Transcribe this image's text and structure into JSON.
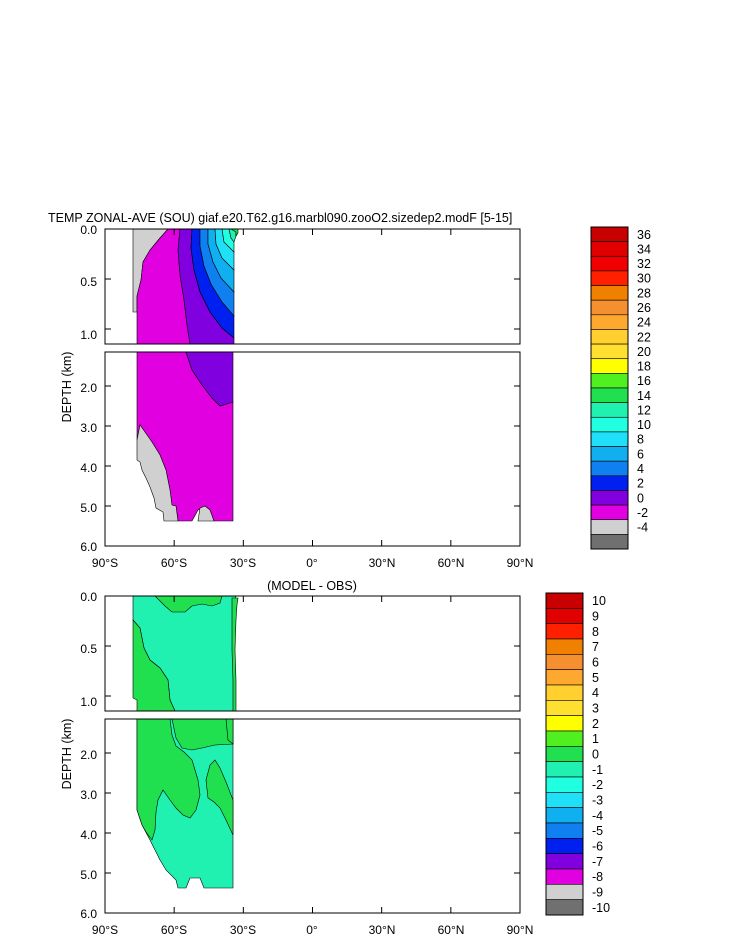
{
  "chart_data": [
    {
      "type": "contour",
      "title": "TEMP ZONAL-AVE (SOU) giaf.e20.T62.g16.marbl090.zooO2.sizedep2.modF [5-15]",
      "ylabel": "DEPTH (km)",
      "xlim": [
        -90,
        90
      ],
      "upper_ylim": [
        0.0,
        1.15
      ],
      "lower_ylim": [
        1.15,
        6.0
      ],
      "upper_yticks": [
        "0.0",
        "0.5",
        "1.0"
      ],
      "lower_yticks": [
        "2.0",
        "3.0",
        "4.0",
        "5.0",
        "6.0"
      ],
      "xticks": [
        "90°S",
        "60°S",
        "30°S",
        "0°",
        "30°N",
        "60°N",
        "90°N"
      ],
      "data_lat_range": [
        -78,
        -32
      ],
      "colorbar": {
        "labels": [
          "36",
          "34",
          "32",
          "30",
          "28",
          "26",
          "24",
          "22",
          "20",
          "18",
          "16",
          "14",
          "12",
          "10",
          "8",
          "6",
          "4",
          "2",
          "0",
          "-2",
          "-4"
        ],
        "colors": [
          "#c80000",
          "#e00000",
          "#f00000",
          "#ff2000",
          "#f08000",
          "#f49030",
          "#ffa830",
          "#ffd030",
          "#ffe030",
          "#ffff00",
          "#50f020",
          "#20e050",
          "#20f0b0",
          "#20ffe0",
          "#20e0f8",
          "#10b0f0",
          "#1080f0",
          "#0020f0",
          "#8000e0",
          "#e000e0",
          "#d0d0d0",
          "#707070"
        ]
      }
    },
    {
      "type": "contour",
      "title": "(MODEL - OBS)",
      "ylabel": "DEPTH (km)",
      "xlim": [
        -90,
        90
      ],
      "upper_ylim": [
        0.0,
        1.15
      ],
      "lower_ylim": [
        1.15,
        6.0
      ],
      "upper_yticks": [
        "0.0",
        "0.5",
        "1.0"
      ],
      "lower_yticks": [
        "2.0",
        "3.0",
        "4.0",
        "5.0",
        "6.0"
      ],
      "xticks": [
        "90°S",
        "60°S",
        "30°S",
        "0°",
        "30°N",
        "60°N",
        "90°N"
      ],
      "data_lat_range": [
        -78,
        -32
      ],
      "colorbar": {
        "labels": [
          "10",
          "9",
          "8",
          "7",
          "6",
          "5",
          "4",
          "3",
          "2",
          "1",
          "0",
          "-1",
          "-2",
          "-3",
          "-4",
          "-5",
          "-6",
          "-7",
          "-8",
          "-9",
          "-10"
        ],
        "colors": [
          "#c80000",
          "#e00000",
          "#ff2000",
          "#f08000",
          "#f49030",
          "#ffa830",
          "#ffd030",
          "#ffe030",
          "#ffff00",
          "#50f020",
          "#20e050",
          "#20f0b0",
          "#20ffe0",
          "#20e0f8",
          "#10b0f0",
          "#1080f0",
          "#0020f0",
          "#8000e0",
          "#e000e0",
          "#d0d0d0",
          "#707070"
        ]
      }
    }
  ]
}
